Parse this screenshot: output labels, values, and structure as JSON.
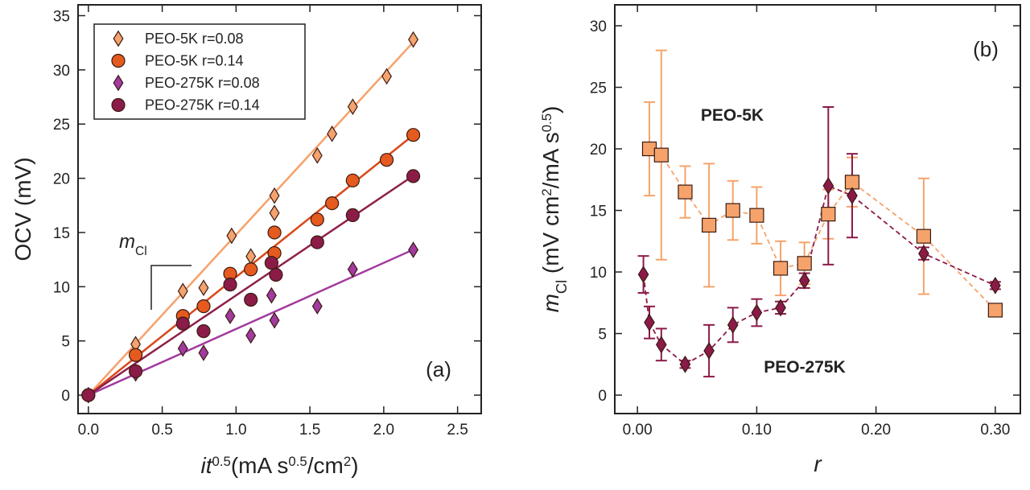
{
  "chart_data": [
    {
      "type": "scatter",
      "panel_label": "(a)",
      "x_label_parts": [
        {
          "text": "it",
          "italic": true
        },
        {
          "text": "0.5",
          "sup": true
        },
        {
          "text": "(mA s"
        },
        {
          "text": "0.5",
          "sup": true
        },
        {
          "text": "/cm"
        },
        {
          "text": "2",
          "sup": true
        },
        {
          "text": ")"
        }
      ],
      "y_label_parts": [
        {
          "text": "OCV (mV)"
        }
      ],
      "annotation_parts": [
        {
          "text": "m",
          "italic": true
        },
        {
          "text": "Cl",
          "sub": true
        }
      ],
      "xlim": [
        -0.07,
        2.66
      ],
      "ylim": [
        -1.7,
        36
      ],
      "xticks": [
        {
          "value": 0,
          "label": "0.0"
        },
        0.5,
        {
          "value": 1,
          "label": "1.0"
        },
        1.5,
        {
          "value": 2,
          "label": "2.0"
        },
        2.5
      ],
      "yticks": [
        0,
        5,
        10,
        15,
        20,
        25,
        30,
        35
      ],
      "legend": "top-left",
      "series": [
        {
          "name": "PEO-5K r=0.08",
          "color": "#f4a36f",
          "line_color": "#f7a06a",
          "marker": "diamond",
          "fit_slope": 14.8,
          "x": [
            0,
            0.32,
            0.64,
            0.78,
            0.97,
            1.1,
            1.26,
            1.26,
            1.55,
            1.65,
            1.79,
            2.02,
            2.2
          ],
          "values": [
            0,
            4.7,
            9.6,
            9.9,
            14.7,
            12.8,
            18.4,
            16.8,
            22.1,
            24.1,
            26.6,
            29.4,
            32.8
          ]
        },
        {
          "name": "PEO-5K r=0.14",
          "color": "#e55a1e",
          "line_color": "#d9491a",
          "marker": "circle",
          "fit_slope": 10.9,
          "x": [
            0,
            0.32,
            0.64,
            0.78,
            0.96,
            1.1,
            1.26,
            1.26,
            1.55,
            1.65,
            1.79,
            2.02,
            2.2
          ],
          "values": [
            0,
            3.7,
            7.3,
            8.2,
            11.2,
            11.6,
            15,
            13.1,
            16.2,
            17.7,
            19.8,
            21.7,
            24
          ]
        },
        {
          "name": "PEO-275K r=0.08",
          "color": "#a23aa0",
          "line_color": "#a23a9e",
          "marker": "diamond",
          "fit_slope": 6.1,
          "x": [
            0,
            0.32,
            0.64,
            0.78,
            0.96,
            1.1,
            1.24,
            1.26,
            1.55,
            1.79,
            2.2
          ],
          "values": [
            0,
            2,
            4.3,
            3.9,
            7.3,
            5.5,
            9.2,
            6.9,
            8.2,
            11.6,
            13.4
          ]
        },
        {
          "name": "PEO-275K r=0.14",
          "color": "#8b1c48",
          "line_color": "#8e2048",
          "marker": "circle",
          "fit_slope": 9.2,
          "x": [
            0,
            0.32,
            0.64,
            0.78,
            0.96,
            1.1,
            1.24,
            1.27,
            1.55,
            1.79,
            2.2
          ],
          "values": [
            0,
            2.2,
            6.6,
            5.9,
            10.2,
            8.8,
            12.2,
            11.1,
            14.1,
            16.6,
            20.2
          ]
        }
      ]
    },
    {
      "type": "errorbar",
      "panel_label": "(b)",
      "x_label_parts": [
        {
          "text": "r",
          "italic": true
        }
      ],
      "y_label_parts": [
        {
          "text": "m",
          "italic": true
        },
        {
          "text": "Cl",
          "sub": true
        },
        {
          "text": " (mV cm"
        },
        {
          "text": "2",
          "sup": true
        },
        {
          "text": "/mA s"
        },
        {
          "text": "0.5",
          "sup": true
        },
        {
          "text": ")"
        }
      ],
      "xlim": [
        -0.019,
        0.321
      ],
      "ylim": [
        -1.5,
        31.7
      ],
      "xticks": [
        {
          "value": 0,
          "label": "0.00"
        },
        {
          "value": 0.1,
          "label": "0.10"
        },
        {
          "value": 0.2,
          "label": "0.20"
        },
        {
          "value": 0.3,
          "label": "0.30"
        }
      ],
      "yticks": [
        0,
        5,
        10,
        15,
        20,
        25,
        30
      ],
      "series": [
        {
          "name": "PEO-5K",
          "color": "#f5a36b",
          "marker": "square",
          "x": [
            0.01,
            0.02,
            0.04,
            0.06,
            0.08,
            0.1,
            0.12,
            0.14,
            0.16,
            0.18,
            0.24,
            0.3
          ],
          "values": [
            20,
            19.5,
            16.5,
            13.8,
            15,
            14.6,
            10.3,
            10.7,
            14.7,
            17.3,
            12.9,
            6.9
          ],
          "errors": [
            3.8,
            8.5,
            2.1,
            5,
            2.4,
            2.3,
            2.2,
            1.7,
            2,
            2,
            4.7,
            0.5
          ]
        },
        {
          "name": "PEO-275K",
          "color": "#8b1a48",
          "marker": "diamond",
          "x": [
            0.005,
            0.01,
            0.02,
            0.04,
            0.06,
            0.08,
            0.1,
            0.12,
            0.14,
            0.16,
            0.18,
            0.24,
            0.3
          ],
          "values": [
            9.8,
            5.9,
            4.1,
            2.5,
            3.6,
            5.7,
            6.7,
            7.1,
            9.3,
            17,
            16.2,
            11.5,
            8.9
          ],
          "errors": [
            1.5,
            1.3,
            1.3,
            0.3,
            2.1,
            1.4,
            1.1,
            0.5,
            0.6,
            6.4,
            3.4,
            0.5,
            0.3
          ]
        }
      ]
    }
  ]
}
